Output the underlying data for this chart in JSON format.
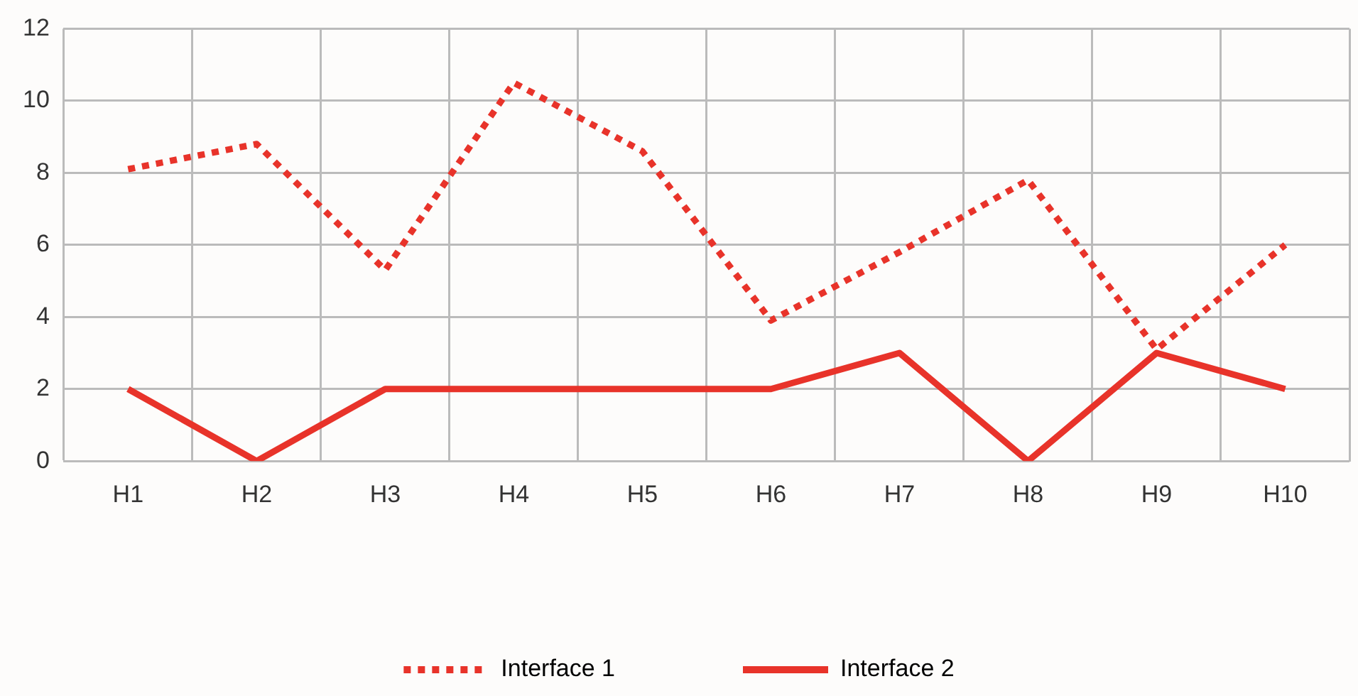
{
  "chart_data": {
    "type": "line",
    "categories": [
      "H1",
      "H2",
      "H3",
      "H4",
      "H5",
      "H6",
      "H7",
      "H8",
      "H9",
      "H10"
    ],
    "series": [
      {
        "name": "Interface 1",
        "color": "#e8332a",
        "line_style": "dotted",
        "values": [
          8.1,
          8.8,
          5.3,
          10.5,
          8.6,
          3.9,
          5.8,
          7.8,
          3.1,
          6.0
        ]
      },
      {
        "name": "Interface 2",
        "color": "#e8332a",
        "line_style": "solid",
        "values": [
          2,
          0,
          2,
          2,
          2,
          2,
          3,
          0,
          3,
          2
        ]
      }
    ],
    "ylim": [
      0,
      12
    ],
    "yticks": [
      0,
      2,
      4,
      6,
      8,
      10,
      12
    ],
    "grid": true,
    "legend": "bottom",
    "marker": "none"
  }
}
